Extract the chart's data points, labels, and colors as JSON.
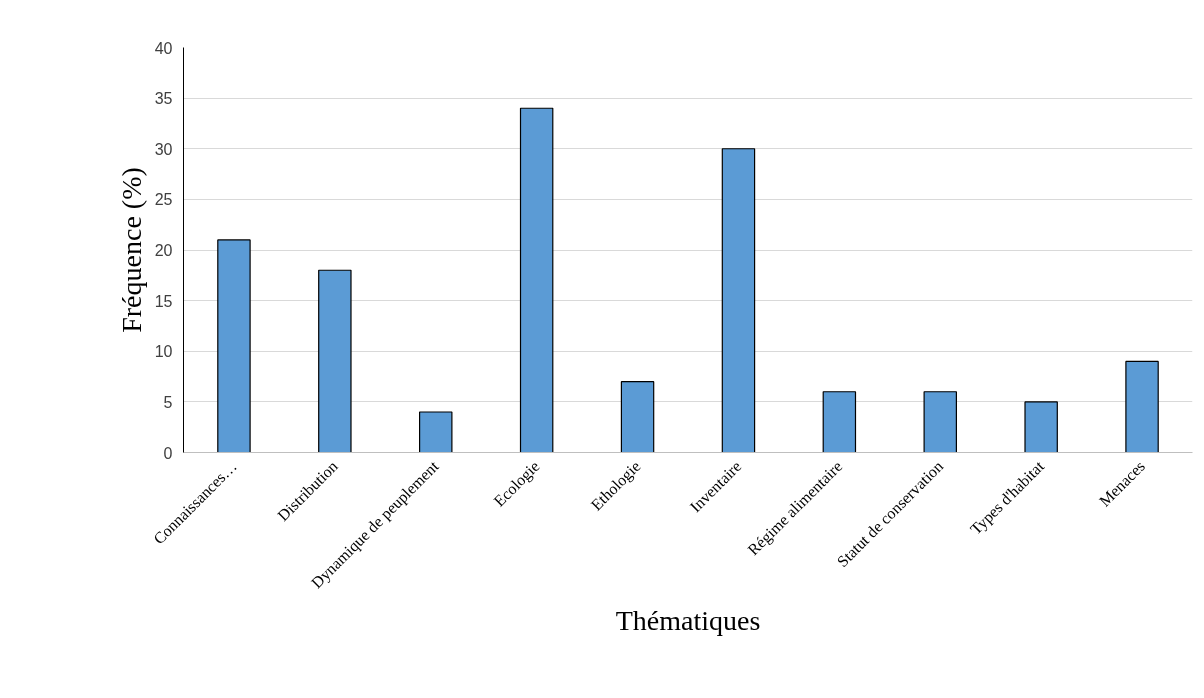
{
  "chart_data": {
    "type": "bar",
    "xlabel": "Thématiques",
    "ylabel": "Fréquence (%)",
    "categories": [
      "Connaissances…",
      "Distribution",
      "Dynamique de peuplement",
      "Ecologie",
      "Ethologie",
      "Inventaire",
      "Régime alimentaire",
      "Statut de conservation",
      "Types d'habitat",
      "Menaces"
    ],
    "values": [
      21,
      18,
      4,
      34,
      7,
      30,
      6,
      6,
      5,
      9
    ],
    "color": "#5b9bd5",
    "ylim": [
      0,
      40
    ],
    "yticks": [
      0,
      5,
      10,
      15,
      20,
      25,
      30,
      35,
      40
    ],
    "grid": "y"
  }
}
